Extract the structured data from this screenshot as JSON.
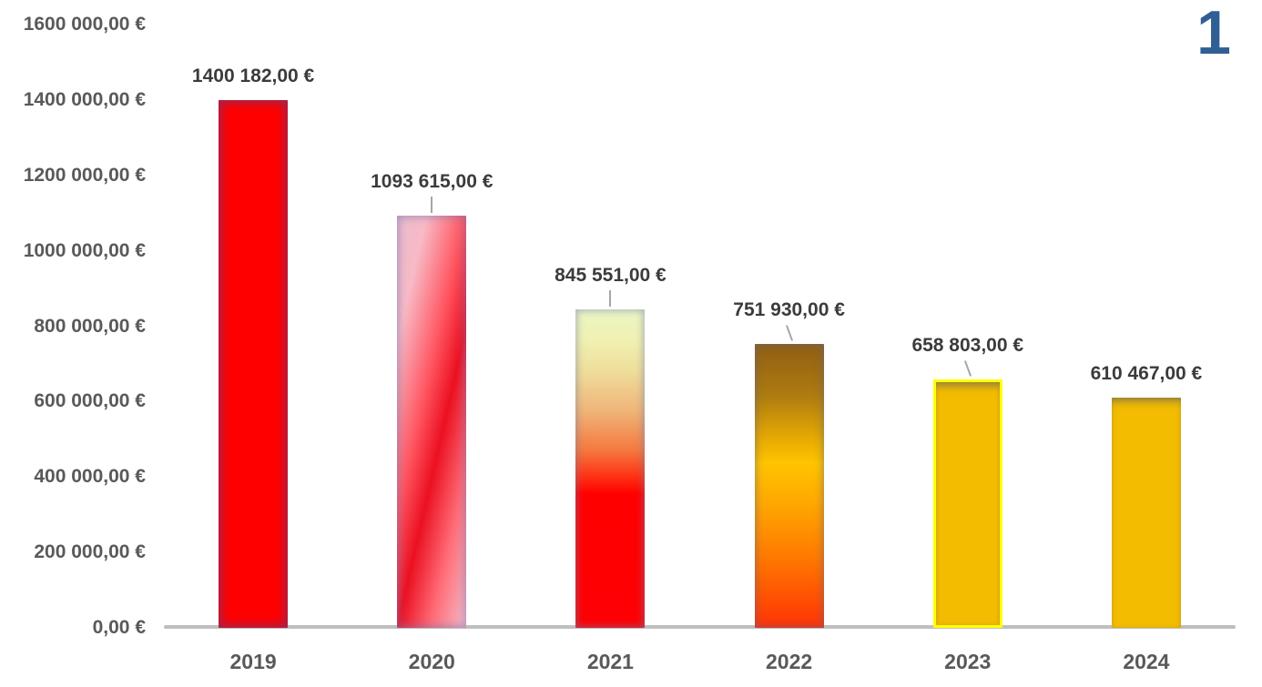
{
  "slide_number": "1",
  "chart_data": {
    "type": "bar",
    "title": "",
    "xlabel": "",
    "ylabel": "",
    "categories": [
      "2019",
      "2020",
      "2021",
      "2022",
      "2023",
      "2024"
    ],
    "values": [
      1400182,
      1093615,
      845551,
      751930,
      658803,
      610467
    ],
    "value_labels": [
      "1400 182,00 €",
      "1093 615,00 €",
      "845 551,00 €",
      "751 930,00 €",
      "658 803,00 €",
      "610 467,00 €"
    ],
    "y_ticks": [
      "1600 000,00 €",
      "1400 000,00 €",
      "1200 000,00 €",
      "1000 000,00 €",
      "800 000,00 €",
      "600 000,00 €",
      "400 000,00 €",
      "200 000,00 €",
      "0,00 €"
    ],
    "ylim": [
      0,
      1600000
    ],
    "grid": false,
    "legend": false,
    "background": "#FFFFFF",
    "colors": {
      "axis_line": "#BFBFBF",
      "tick_label": "#595959",
      "category_label": "#595959",
      "value_label": "#3B3B3B",
      "leader_line": "#A6A6A6",
      "slide_number": "#2F5F94"
    },
    "bars": [
      {
        "category": "2019",
        "fill_type": "soft-red",
        "stops": [
          "#FE0000 0%",
          "#FE0000 100%"
        ],
        "border": "",
        "leader": "none"
      },
      {
        "category": "2020",
        "fill_type": "sheen-red",
        "stops": [
          "#E9BCCE 0%",
          "#F8BAC6 18%",
          "#FF5560 42%",
          "#EB1021 58%",
          "#FF6B76 78%",
          "#F4BDCA 100%"
        ],
        "border": "",
        "leader": "vertical"
      },
      {
        "category": "2021",
        "fill_type": "heat",
        "stops": [
          "#ECF6C6 0%",
          "#F0F0B0 10%",
          "#EFDC9A 20%",
          "#EFB478 32%",
          "#F57A40 44%",
          "#FF2D12 53%",
          "#FF0000 58%",
          "#FD0004 100%"
        ],
        "border": "",
        "leader": "vertical"
      },
      {
        "category": "2022",
        "fill_type": "amber",
        "stops": [
          "#8F5F14 0%",
          "#AD7B10 18%",
          "#E8AC02 34%",
          "#FFC400 42%",
          "#FFA800 56%",
          "#FF7C00 74%",
          "#FF4A04 92%",
          "#FF3008 100%"
        ],
        "border": "",
        "leader": "slant"
      },
      {
        "category": "2023",
        "fill_type": "gold",
        "stops": [
          "#F3BC00 0%",
          "#F3BC00 100%"
        ],
        "border": "#FFFF00",
        "leader": "slant"
      },
      {
        "category": "2024",
        "fill_type": "gold",
        "stops": [
          "#F3BC00 0%",
          "#F3BC00 100%"
        ],
        "border": "",
        "leader": "none"
      }
    ]
  }
}
